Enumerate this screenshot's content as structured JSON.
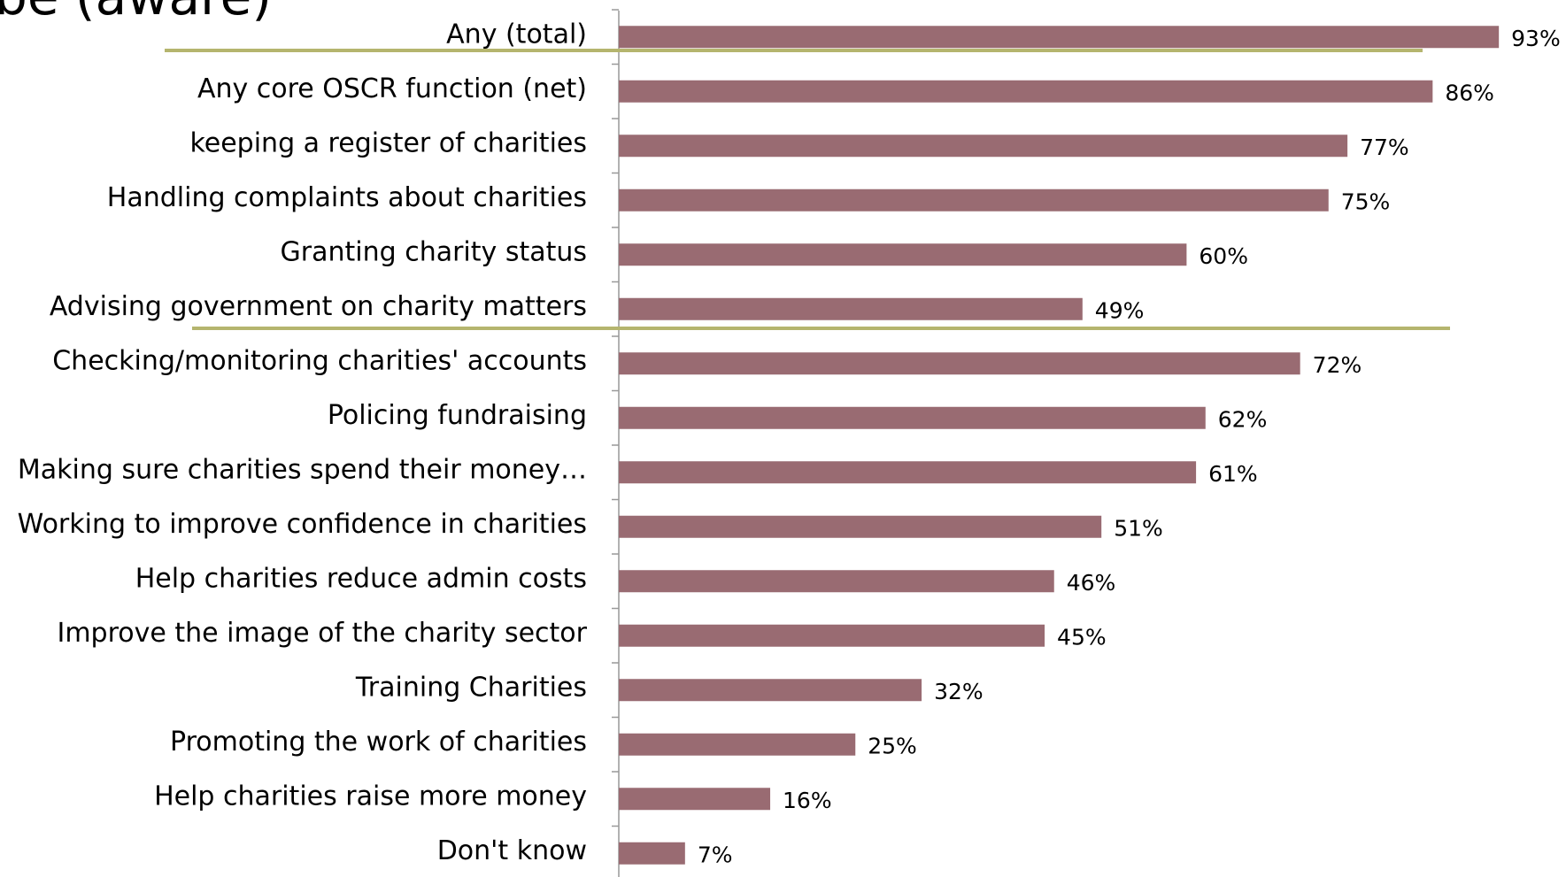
{
  "chart_data": {
    "type": "bar",
    "orientation": "horizontal",
    "title": "be (aware)",
    "categories": [
      "Any (total)",
      "Any core OSCR function (net)",
      "keeping a register of charities",
      "Handling complaints about charities",
      "Granting charity status",
      "Advising government on charity matters",
      "Checking/monitoring charities' accounts",
      "Policing fundraising",
      "Making sure charities spend their money…",
      "Working to improve confidence in charities",
      "Help charities reduce admin costs",
      "Improve the image of the charity sector",
      "Training Charities",
      "Promoting the work of charities",
      "Help charities raise more money",
      "Don't know"
    ],
    "values": [
      93,
      86,
      77,
      75,
      60,
      49,
      72,
      62,
      61,
      51,
      46,
      45,
      32,
      25,
      16,
      7
    ],
    "value_labels": [
      "93%",
      "86%",
      "77%",
      "75%",
      "60%",
      "49%",
      "72%",
      "62%",
      "61%",
      "51%",
      "46%",
      "45%",
      "32%",
      "25%",
      "16%",
      "7%"
    ],
    "color": "#996b72",
    "xlim": [
      0,
      100
    ]
  }
}
